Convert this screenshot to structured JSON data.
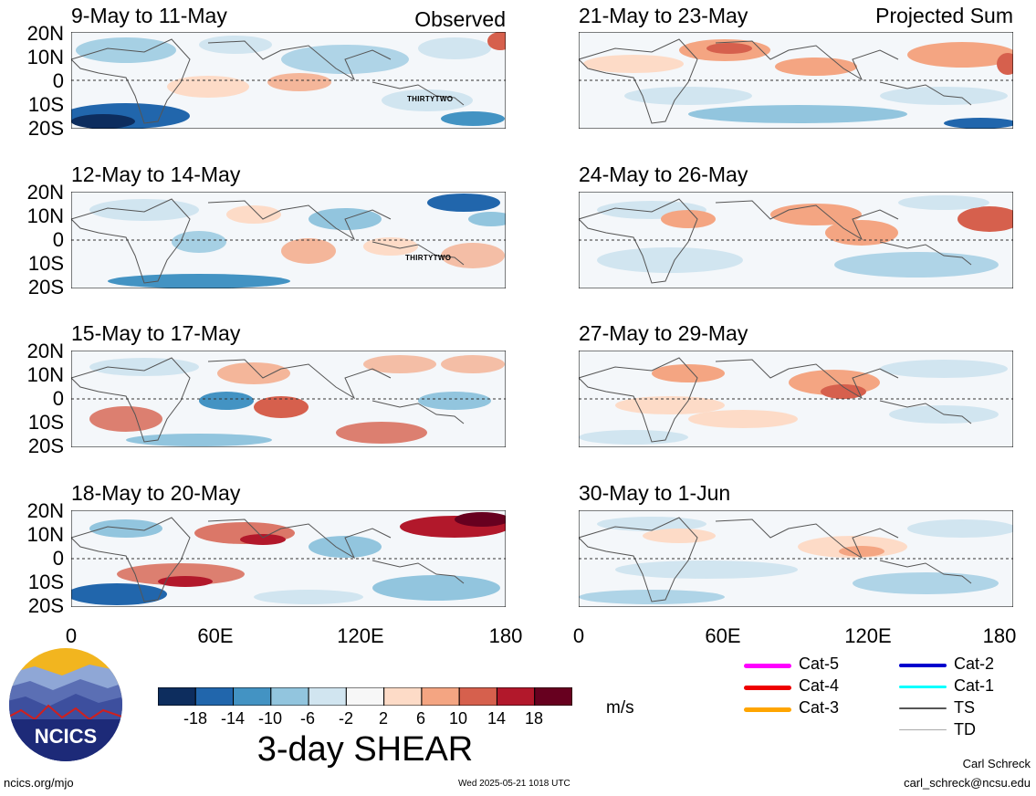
{
  "header": {
    "left_tag": "Observed",
    "right_tag": "Projected Sum"
  },
  "left_panels": [
    {
      "title": "9-May to 11-May",
      "storm": "THIRTYTWO"
    },
    {
      "title": "12-May to 14-May",
      "storm": "THIRTYTWO"
    },
    {
      "title": "15-May to 17-May",
      "storm": ""
    },
    {
      "title": "18-May to 20-May",
      "storm": ""
    }
  ],
  "right_panels": [
    {
      "title": "21-May to 23-May"
    },
    {
      "title": "24-May to 26-May"
    },
    {
      "title": "27-May to 29-May"
    },
    {
      "title": "30-May to 1-Jun"
    }
  ],
  "lat_labels": [
    "20N",
    "10N",
    "0",
    "10S",
    "20S"
  ],
  "lon_labels": [
    "0",
    "60E",
    "120E",
    "180"
  ],
  "colorbar": {
    "colors": [
      "#0d2d5e",
      "#2166ac",
      "#4393c3",
      "#92c5de",
      "#d1e5f0",
      "#f7f7f7",
      "#fddbc7",
      "#f4a582",
      "#d6604d",
      "#b2182b",
      "#67001f"
    ],
    "ticks": [
      "-18",
      "-14",
      "-10",
      "-6",
      "-2",
      "2",
      "6",
      "10",
      "14",
      "18"
    ],
    "units": "m/s",
    "title": "3-day SHEAR"
  },
  "legend": [
    {
      "label": "Cat-5",
      "color": "#ff00ff"
    },
    {
      "label": "Cat-4",
      "color": "#ee0000"
    },
    {
      "label": "Cat-3",
      "color": "#ffa500"
    },
    {
      "label": "Cat-2",
      "color": "#0000cd"
    },
    {
      "label": "Cat-1",
      "color": "#00ffff"
    },
    {
      "label": "TS",
      "color": "#555555"
    },
    {
      "label": "TD",
      "color": "#aaaaaa"
    }
  ],
  "logo": {
    "text": "NCICS"
  },
  "footer": {
    "url": "ncics.org/mjo",
    "timestamp": "Wed 2025-05-21 1018 UTC",
    "author": "Carl Schreck",
    "email": "carl_schreck@ncsu.edu"
  }
}
